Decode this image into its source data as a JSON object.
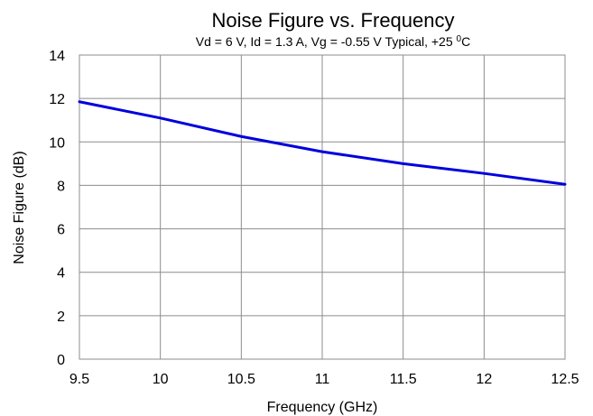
{
  "chart_data": {
    "type": "line",
    "title": "Noise Figure vs. Frequency",
    "subtitle_main": "Vd = 6 V, Id = 1.3 A, Vg = -0.55 V Typical, +25 ",
    "subtitle_sup": "0",
    "subtitle_end": "C",
    "xlabel": "Frequency (GHz)",
    "ylabel": "Noise Figure (dB)",
    "xlim": [
      9.5,
      12.5
    ],
    "ylim": [
      0,
      14
    ],
    "x_ticks": [
      "9.5",
      "10",
      "10.5",
      "11",
      "11.5",
      "12",
      "12.5"
    ],
    "y_ticks": [
      "0",
      "2",
      "4",
      "6",
      "8",
      "10",
      "12",
      "14"
    ],
    "grid": true,
    "series": [
      {
        "color": "#0000dd",
        "x": [
          9.5,
          10.0,
          10.5,
          11.0,
          11.5,
          12.0,
          12.5
        ],
        "y": [
          11.85,
          11.1,
          10.25,
          9.55,
          9.0,
          8.55,
          8.05
        ]
      }
    ]
  }
}
